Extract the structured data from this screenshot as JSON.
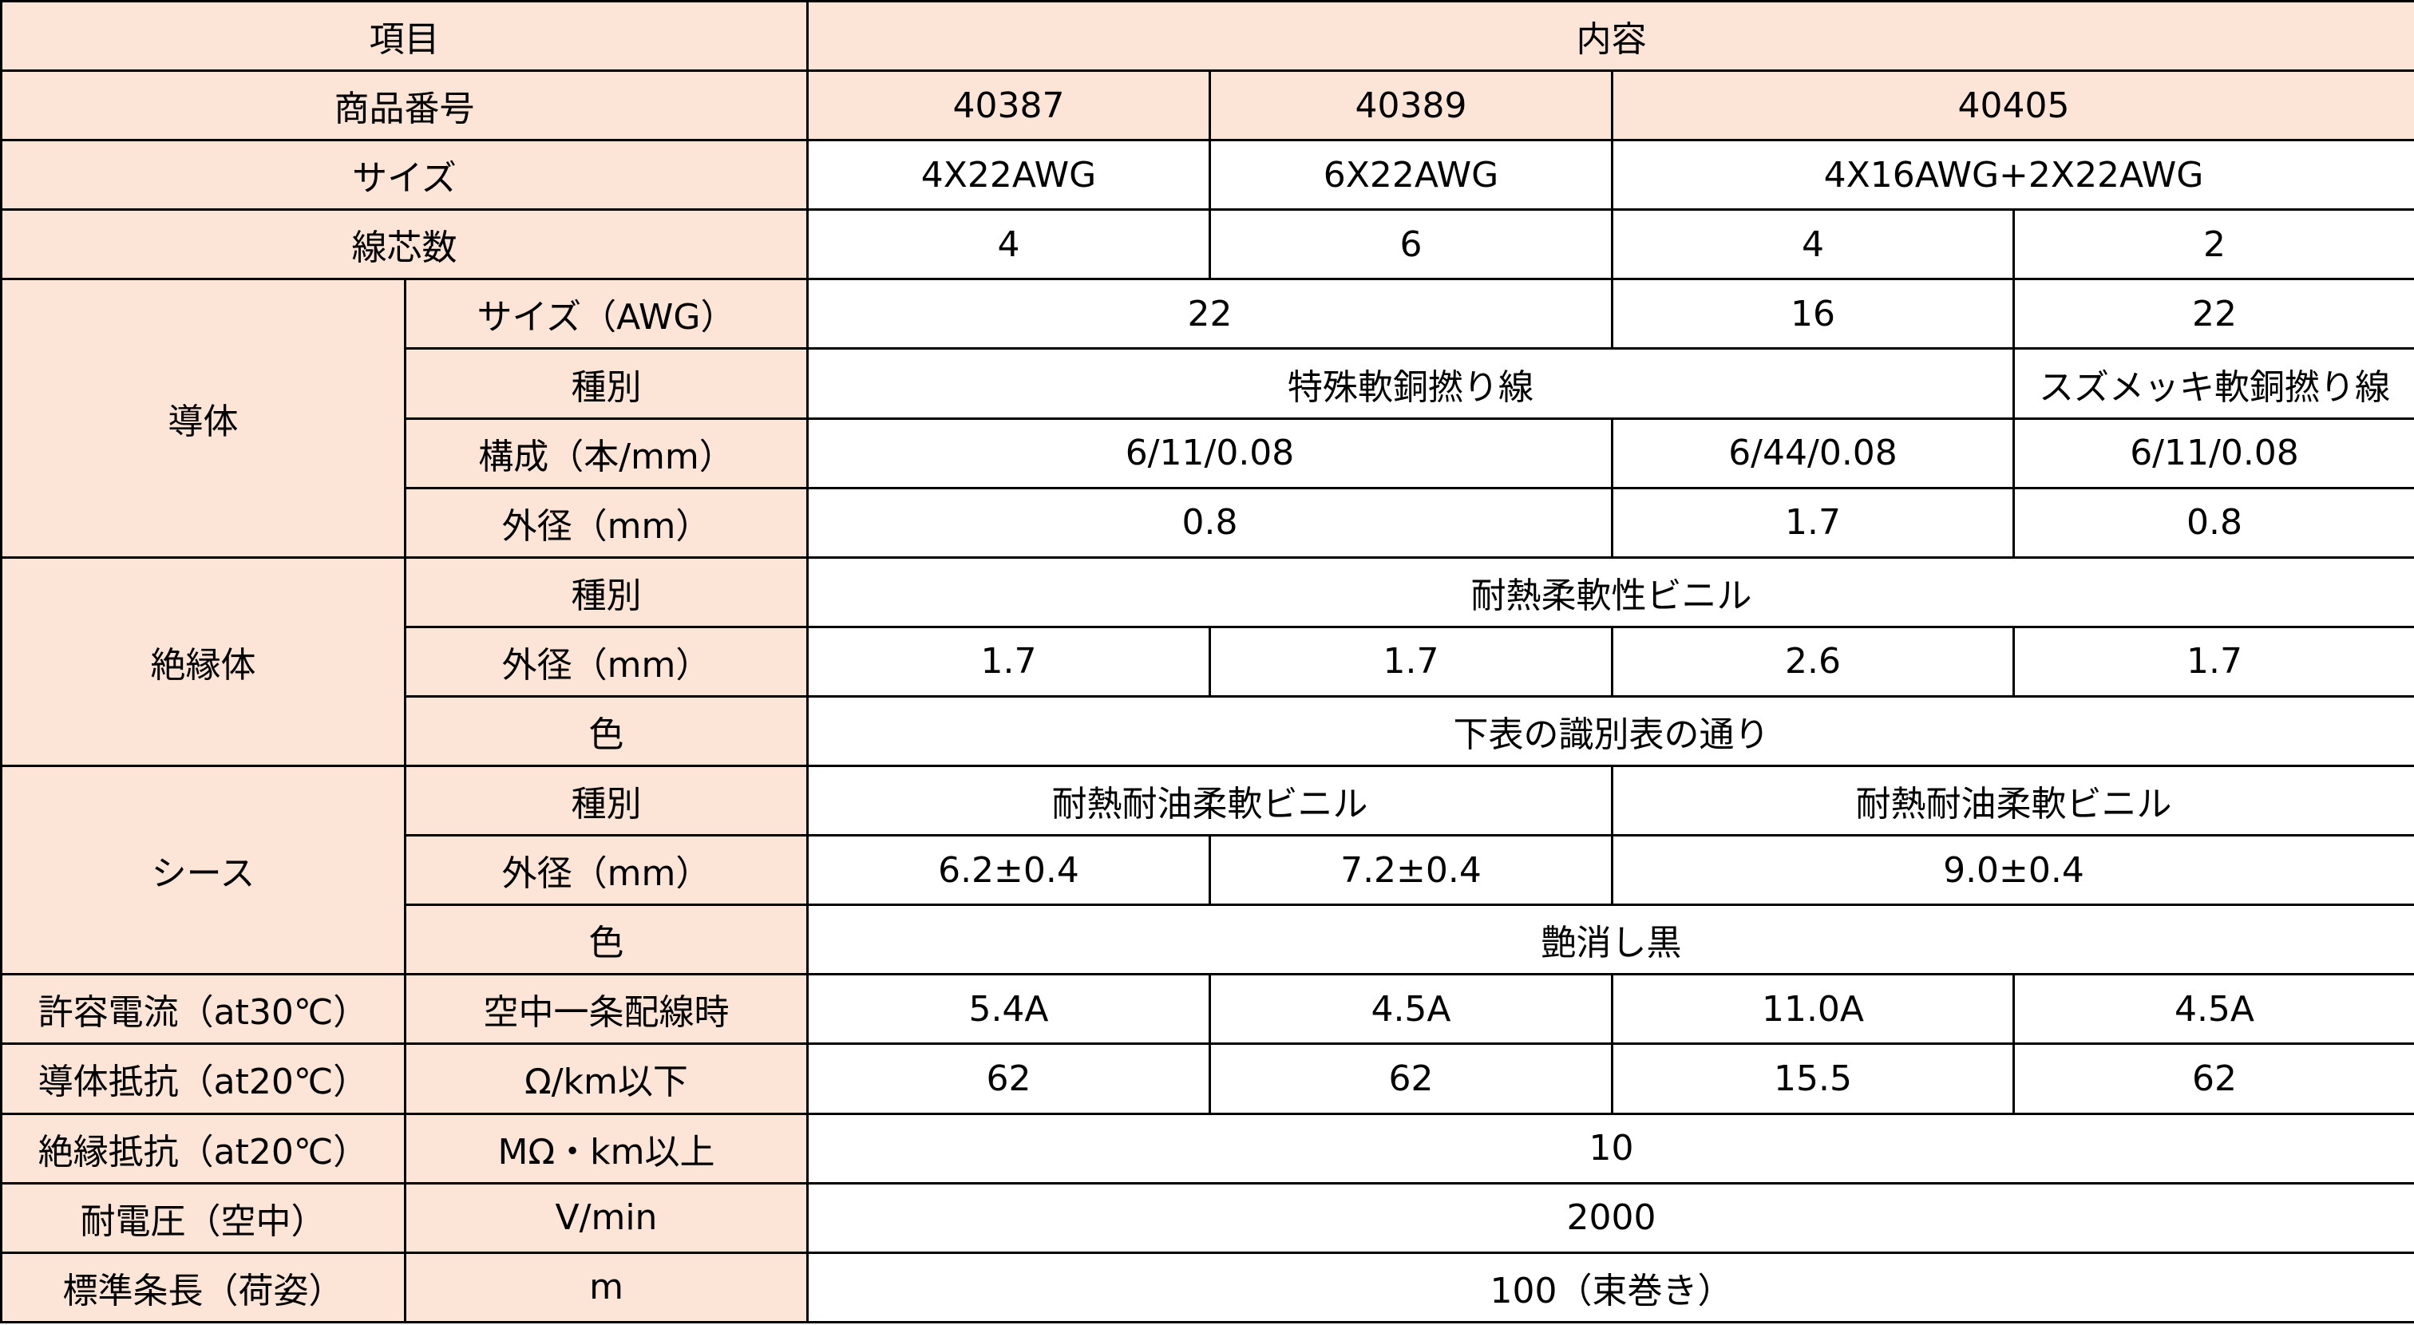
{
  "table": {
    "rows": [
      [
        "項目",
        "内容"
      ],
      [
        "商品番号",
        "40387",
        "40389",
        "40405"
      ],
      [
        "サイズ",
        "4X22AWG",
        "6X22AWG",
        "4X16AWG+2X22AWG"
      ],
      [
        "線芯数",
        "4",
        "6",
        "4",
        "2"
      ],
      [
        "導体",
        "サイズ（AWG）",
        "22",
        "16",
        "22"
      ],
      [
        "種別",
        "特殊軟銅撚り線",
        "スズメッキ軟銅撚り線"
      ],
      [
        "構成（本/mm）",
        "6/11/0.08",
        "6/44/0.08",
        "6/11/0.08"
      ],
      [
        "外径（mm）",
        "0.8",
        "1.7",
        "0.8"
      ],
      [
        "絶縁体",
        "種別",
        "耐熱柔軟性ビニル"
      ],
      [
        "外径（mm）",
        "1.7",
        "1.7",
        "2.6",
        "1.7"
      ],
      [
        "色",
        "下表の識別表の通り"
      ],
      [
        "シース",
        "種別",
        "耐熱耐油柔軟ビニル",
        "耐熱耐油柔軟ビニル"
      ],
      [
        "外径（mm）",
        "6.2±0.4",
        "7.2±0.4",
        "9.0±0.4"
      ],
      [
        "色",
        "艶消し黒"
      ],
      [
        "許容電流（at30℃）",
        "空中一条配線時",
        "5.4A",
        "4.5A",
        "11.0A",
        "4.5A"
      ],
      [
        "導体抵抗（at20℃）",
        "Ω/km以下",
        "62",
        "62",
        "15.5",
        "62"
      ],
      [
        "絶縁抵抗（at20℃）",
        "MΩ・km以上",
        "10"
      ],
      [
        "耐電圧（空中）",
        "V/min",
        "2000"
      ],
      [
        "標準条長（荷姿）",
        "m",
        "100（束巻き）"
      ]
    ]
  }
}
